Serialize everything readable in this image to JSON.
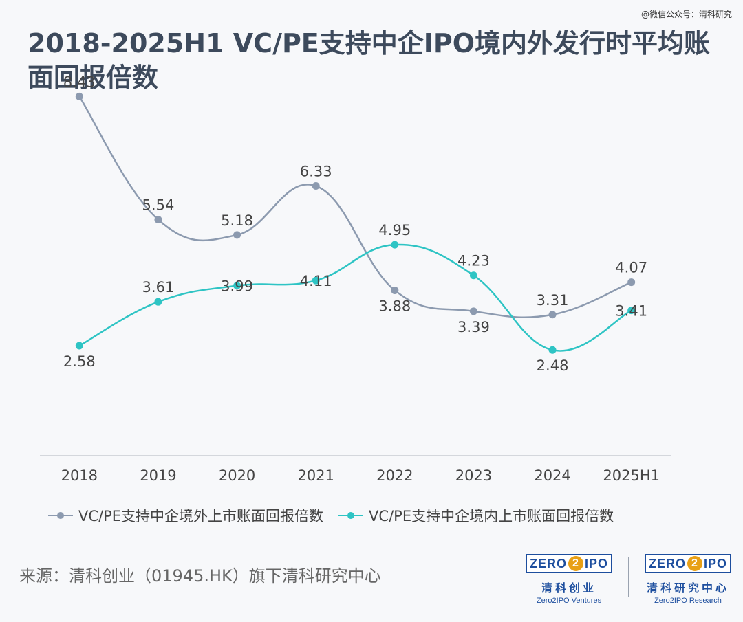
{
  "watermark": "@微信公众号：清科研究",
  "title": "2018-2025H1 VC/PE支持中企IPO境内外发行时平均账面回报倍数",
  "colors": {
    "overseas": "#8c9aaf",
    "domestic": "#2ec4c4",
    "axis": "#c8ccd2",
    "label": "#444444"
  },
  "chart_data": {
    "type": "line",
    "title": "2018-2025H1 VC/PE支持中企IPO境内外发行时平均账面回报倍数",
    "categories": [
      "2018",
      "2019",
      "2020",
      "2021",
      "2022",
      "2023",
      "2024",
      "2025H1"
    ],
    "series": [
      {
        "name": "VC/PE支持中企境外上市账面回报倍数",
        "values": [
          8.43,
          5.54,
          5.18,
          6.33,
          3.88,
          3.39,
          3.31,
          4.07
        ],
        "labels": [
          "8.43",
          "5.54",
          "5.18",
          "6.33",
          "3.88",
          "3.39",
          "3.31",
          "4.07"
        ],
        "color": "#8c9aaf",
        "smooth": true
      },
      {
        "name": "VC/PE支持中企境内上市账面回报倍数",
        "values": [
          2.58,
          3.61,
          3.99,
          4.11,
          4.95,
          4.23,
          2.48,
          3.41
        ],
        "labels": [
          "2.58",
          "3.61",
          "3.99",
          "4.11",
          "4.95",
          "4.23",
          "2.48",
          "3.41"
        ],
        "color": "#2ec4c4",
        "smooth": true
      }
    ],
    "ylim": [
      0,
      9
    ],
    "grid": false,
    "legend_position": "bottom"
  },
  "legend": {
    "overseas": "VC/PE支持中企境外上市账面回报倍数",
    "domestic": "VC/PE支持中企境内上市账面回报倍数"
  },
  "source": "来源：清科创业（01945.HK）旗下清科研究中心",
  "logos": [
    {
      "prefix": "ZERO",
      "digit": "2",
      "suffix": "IPO",
      "cn": "清科创业",
      "en": "Zero2IPO Ventures"
    },
    {
      "prefix": "ZERO",
      "digit": "2",
      "suffix": "IPO",
      "cn": "清科研究中心",
      "en": "Zero2IPO Research"
    }
  ]
}
